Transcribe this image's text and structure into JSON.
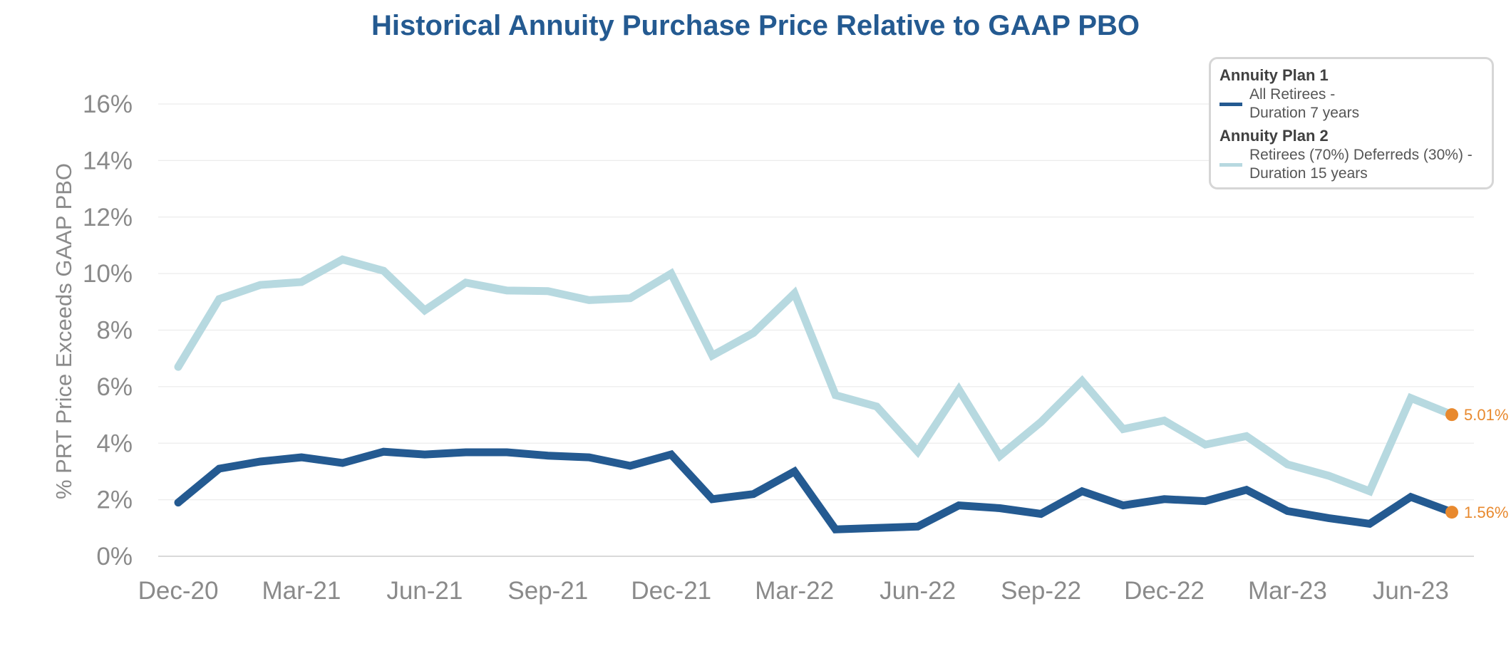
{
  "chart_data": {
    "type": "line",
    "title": "Historical Annuity Purchase Price Relative to GAAP PBO",
    "xlabel": "",
    "ylabel": "% PRT Price Exceeds GAAP PBO",
    "ylim": [
      0,
      16
    ],
    "yticks": [
      "0%",
      "2%",
      "4%",
      "6%",
      "8%",
      "10%",
      "12%",
      "14%",
      "16%"
    ],
    "x_tick_labels": [
      {
        "index": 0,
        "label": "Dec-20"
      },
      {
        "index": 3,
        "label": "Mar-21"
      },
      {
        "index": 6,
        "label": "Jun-21"
      },
      {
        "index": 9,
        "label": "Sep-21"
      },
      {
        "index": 12,
        "label": "Dec-21"
      },
      {
        "index": 15,
        "label": "Mar-22"
      },
      {
        "index": 18,
        "label": "Jun-22"
      },
      {
        "index": 21,
        "label": "Sep-22"
      },
      {
        "index": 24,
        "label": "Dec-22"
      },
      {
        "index": 27,
        "label": "Mar-23"
      },
      {
        "index": 30,
        "label": "Jun-23"
      }
    ],
    "grid": true,
    "legend_position": "top-right",
    "categories": [
      "Dec-20",
      "Jan-21",
      "Feb-21",
      "Mar-21",
      "Apr-21",
      "May-21",
      "Jun-21",
      "Jul-21",
      "Aug-21",
      "Sep-21",
      "Oct-21",
      "Nov-21",
      "Dec-21",
      "Jan-22",
      "Feb-22",
      "Mar-22",
      "Apr-22",
      "May-22",
      "Jun-22",
      "Jul-22",
      "Aug-22",
      "Sep-22",
      "Oct-22",
      "Nov-22",
      "Dec-22",
      "Jan-23",
      "Feb-23",
      "Mar-23",
      "Apr-23",
      "May-23",
      "Jun-23",
      "Jul-23"
    ],
    "series": [
      {
        "name": "All Retirees - Duration 7 years",
        "group": "Annuity Plan 1",
        "line1": "All Retirees -",
        "line2": "Duration 7 years",
        "color": "#245a91",
        "values": [
          1.9,
          3.1,
          3.35,
          3.5,
          3.3,
          3.7,
          3.6,
          3.68,
          3.68,
          3.56,
          3.5,
          3.2,
          3.6,
          2.02,
          2.2,
          3.0,
          0.95,
          1.0,
          1.05,
          1.8,
          1.7,
          1.5,
          2.3,
          1.8,
          2.02,
          1.95,
          2.35,
          1.6,
          1.35,
          1.15,
          2.1,
          1.56
        ],
        "end_label": "1.56%"
      },
      {
        "name": "Retirees (70%) Deferreds (30%) - Duration 15 years",
        "group": "Annuity Plan 2",
        "line1": "Retirees (70%) Deferreds (30%) -",
        "line2": "Duration 15 years",
        "color": "#b7d9e0",
        "values": [
          6.7,
          9.1,
          9.6,
          9.7,
          10.5,
          10.1,
          8.7,
          9.68,
          9.4,
          9.38,
          9.06,
          9.13,
          10.0,
          7.1,
          7.9,
          9.3,
          5.7,
          5.3,
          3.7,
          5.9,
          3.55,
          4.75,
          6.2,
          4.5,
          4.8,
          3.95,
          4.25,
          3.25,
          2.85,
          2.3,
          5.6,
          5.01
        ],
        "end_label": "5.01%"
      }
    ],
    "end_marker_color": "#e8892e"
  }
}
